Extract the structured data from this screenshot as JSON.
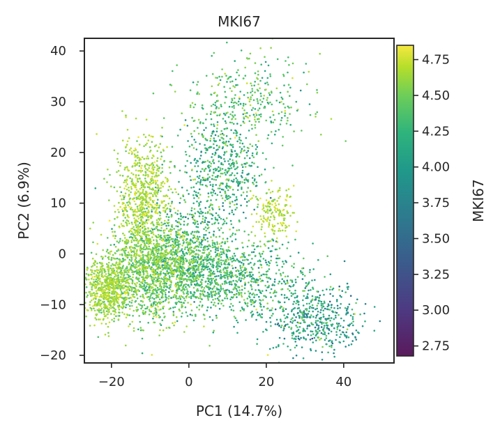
{
  "chart_data": {
    "type": "scatter",
    "title": "MKI67",
    "xlabel": "PC1 (14.7%)",
    "ylabel": "PC2 (6.9%)",
    "xlim": [
      -27,
      53
    ],
    "ylim": [
      -21.5,
      42.5
    ],
    "x_ticks": [
      -20,
      0,
      20,
      40
    ],
    "x_tick_labels": [
      "−20",
      "0",
      "20",
      "40"
    ],
    "y_ticks": [
      -20,
      -10,
      0,
      10,
      20,
      30,
      40
    ],
    "y_tick_labels": [
      "−20",
      "−10",
      "0",
      "10",
      "20",
      "30",
      "40"
    ],
    "grid": false,
    "point_size_hint": "small",
    "colormap": "viridis",
    "colorbar": {
      "label": "MKI67",
      "range": [
        2.68,
        4.85
      ],
      "ticks": [
        2.75,
        3.0,
        3.25,
        3.5,
        3.75,
        4.0,
        4.25,
        4.5,
        4.75
      ],
      "tick_labels": [
        "2.75",
        "3.00",
        "3.25",
        "3.50",
        "3.75",
        "4.00",
        "4.25",
        "4.50",
        "4.75"
      ]
    },
    "clusters": [
      {
        "center": [
          -12,
          11
        ],
        "spread": [
          3.5,
          6
        ],
        "count": 700,
        "value_mean": 4.55,
        "value_sd": 0.12
      },
      {
        "center": [
          -21,
          -7
        ],
        "spread": [
          3,
          3
        ],
        "count": 650,
        "value_mean": 4.5,
        "value_sd": 0.12
      },
      {
        "center": [
          -10,
          -3
        ],
        "spread": [
          6,
          5
        ],
        "count": 1300,
        "value_mean": 4.35,
        "value_sd": 0.18
      },
      {
        "center": [
          2,
          -3
        ],
        "spread": [
          7,
          4
        ],
        "count": 800,
        "value_mean": 4.15,
        "value_sd": 0.22
      },
      {
        "center": [
          16,
          -6
        ],
        "spread": [
          8,
          4
        ],
        "count": 500,
        "value_mean": 4.1,
        "value_sd": 0.22
      },
      {
        "center": [
          33,
          -13
        ],
        "spread": [
          6,
          3.5
        ],
        "count": 450,
        "value_mean": 3.9,
        "value_sd": 0.25
      },
      {
        "center": [
          9,
          17
        ],
        "spread": [
          5,
          5
        ],
        "count": 450,
        "value_mean": 4.05,
        "value_sd": 0.22
      },
      {
        "center": [
          15,
          30
        ],
        "spread": [
          8,
          4.5
        ],
        "count": 350,
        "value_mean": 4.25,
        "value_sd": 0.2
      },
      {
        "center": [
          22,
          8
        ],
        "spread": [
          2.5,
          2.5
        ],
        "count": 160,
        "value_mean": 4.6,
        "value_sd": 0.1
      },
      {
        "center": [
          2,
          6
        ],
        "spread": [
          6,
          6
        ],
        "count": 300,
        "value_mean": 4.1,
        "value_sd": 0.25
      }
    ]
  }
}
